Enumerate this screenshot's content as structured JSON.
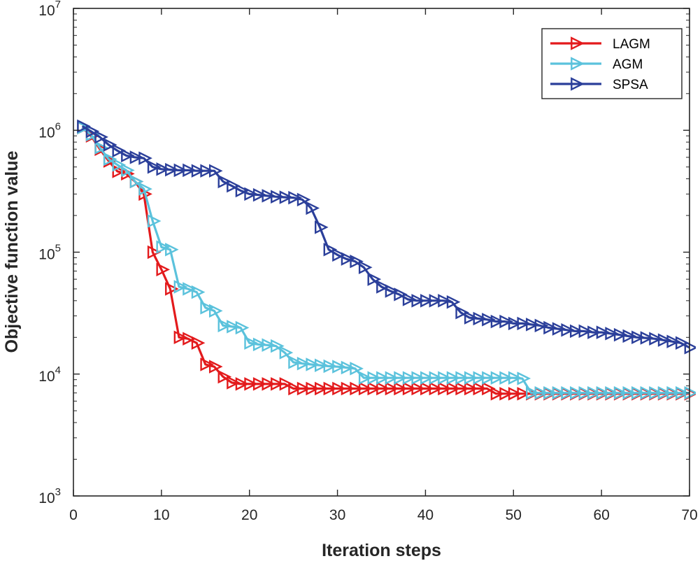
{
  "chart_data": {
    "type": "line",
    "title": "",
    "xlabel": "Iteration steps",
    "ylabel": "Objective function value",
    "xlim": [
      0,
      70
    ],
    "ylim": [
      1000,
      10000000
    ],
    "yscale": "log",
    "grid": false,
    "legend_position": "top-right",
    "marker": "right-pointing-triangle",
    "x_ticks": [
      0,
      10,
      20,
      30,
      40,
      50,
      60,
      70
    ],
    "x_tick_labels": [
      "0",
      "10",
      "20",
      "30",
      "40",
      "50",
      "60",
      "70"
    ],
    "y_ticks": [
      1000,
      10000,
      100000,
      1000000,
      10000000
    ],
    "y_tick_labels": [
      {
        "base": "10",
        "exp": "3"
      },
      {
        "base": "10",
        "exp": "4"
      },
      {
        "base": "10",
        "exp": "5"
      },
      {
        "base": "10",
        "exp": "6"
      },
      {
        "base": "10",
        "exp": "7"
      }
    ],
    "series": [
      {
        "name": "LAGM",
        "color": "#e31a1c",
        "x": [
          1,
          2,
          3,
          4,
          5,
          6,
          7,
          8,
          9,
          10,
          11,
          12,
          13,
          14,
          15,
          16,
          17,
          18,
          19,
          20,
          21,
          22,
          23,
          24,
          25,
          26,
          27,
          28,
          29,
          30,
          31,
          32,
          33,
          34,
          35,
          36,
          37,
          38,
          39,
          40,
          41,
          42,
          43,
          44,
          45,
          46,
          47,
          48,
          49,
          50,
          51,
          52,
          53,
          54,
          55,
          56,
          57,
          58,
          59,
          60,
          61,
          62,
          63,
          64,
          65,
          66,
          67,
          68,
          69,
          70
        ],
        "values": [
          1050000,
          900000,
          700000,
          560000,
          460000,
          440000,
          380000,
          300000,
          100000,
          72000,
          50000,
          20000,
          19500,
          18000,
          12000,
          11500,
          9500,
          8500,
          8300,
          8300,
          8300,
          8300,
          8300,
          8300,
          7600,
          7600,
          7600,
          7600,
          7600,
          7600,
          7600,
          7600,
          7600,
          7600,
          7600,
          7600,
          7600,
          7600,
          7600,
          7600,
          7600,
          7600,
          7600,
          7600,
          7600,
          7600,
          7600,
          6900,
          6900,
          6900,
          6900,
          6900,
          6900,
          6900,
          6900,
          6900,
          6900,
          6900,
          6900,
          6900,
          6900,
          6900,
          6900,
          6900,
          6900,
          6900,
          6900,
          6900,
          6900,
          6900
        ]
      },
      {
        "name": "AGM",
        "color": "#5bc2dc",
        "x": [
          1,
          2,
          3,
          4,
          5,
          6,
          7,
          8,
          9,
          10,
          11,
          12,
          13,
          14,
          15,
          16,
          17,
          18,
          19,
          20,
          21,
          22,
          23,
          24,
          25,
          26,
          27,
          28,
          29,
          30,
          31,
          32,
          33,
          34,
          35,
          36,
          37,
          38,
          39,
          40,
          41,
          42,
          43,
          44,
          45,
          46,
          47,
          48,
          49,
          50,
          51,
          52,
          53,
          54,
          55,
          56,
          57,
          58,
          59,
          60,
          61,
          62,
          63,
          64,
          65,
          66,
          67,
          68,
          69,
          70
        ],
        "values": [
          1050000,
          920000,
          720000,
          580000,
          520000,
          470000,
          380000,
          330000,
          180000,
          110000,
          105000,
          52000,
          50000,
          47000,
          35000,
          33000,
          25000,
          24500,
          24000,
          18000,
          17500,
          17300,
          17000,
          15000,
          12500,
          12200,
          12000,
          11800,
          11600,
          11500,
          11300,
          11100,
          9300,
          9300,
          9300,
          9300,
          9300,
          9300,
          9300,
          9300,
          9300,
          9300,
          9300,
          9300,
          9300,
          9300,
          9300,
          9300,
          9300,
          9300,
          9200,
          7000,
          7000,
          7000,
          7000,
          7000,
          7000,
          7000,
          7000,
          7000,
          7000,
          7000,
          7000,
          7000,
          7000,
          7000,
          7000,
          7000,
          7000,
          7000
        ]
      },
      {
        "name": "SPSA",
        "color": "#2b3f9a",
        "x": [
          1,
          2,
          3,
          4,
          5,
          6,
          7,
          8,
          9,
          10,
          11,
          12,
          13,
          14,
          15,
          16,
          17,
          18,
          19,
          20,
          21,
          22,
          23,
          24,
          25,
          26,
          27,
          28,
          29,
          30,
          31,
          32,
          33,
          34,
          35,
          36,
          37,
          38,
          39,
          40,
          41,
          42,
          43,
          44,
          45,
          46,
          47,
          48,
          49,
          50,
          51,
          52,
          53,
          54,
          55,
          56,
          57,
          58,
          59,
          60,
          61,
          62,
          63,
          64,
          65,
          66,
          67,
          68,
          69,
          70
        ],
        "values": [
          1080000,
          980000,
          880000,
          760000,
          680000,
          620000,
          600000,
          590000,
          500000,
          480000,
          475000,
          470000,
          470000,
          465000,
          465000,
          465000,
          380000,
          350000,
          320000,
          300000,
          295000,
          290000,
          285000,
          282000,
          280000,
          270000,
          230000,
          160000,
          105000,
          95000,
          88000,
          84000,
          75000,
          60000,
          52000,
          48000,
          45000,
          41000,
          40000,
          40000,
          40000,
          40000,
          39000,
          32000,
          29000,
          28500,
          28000,
          27000,
          27000,
          26000,
          26000,
          25500,
          25000,
          24000,
          23500,
          23000,
          22500,
          22500,
          22000,
          22000,
          21500,
          21000,
          20500,
          20000,
          19800,
          19500,
          19000,
          18500,
          18000,
          16500
        ]
      }
    ]
  }
}
